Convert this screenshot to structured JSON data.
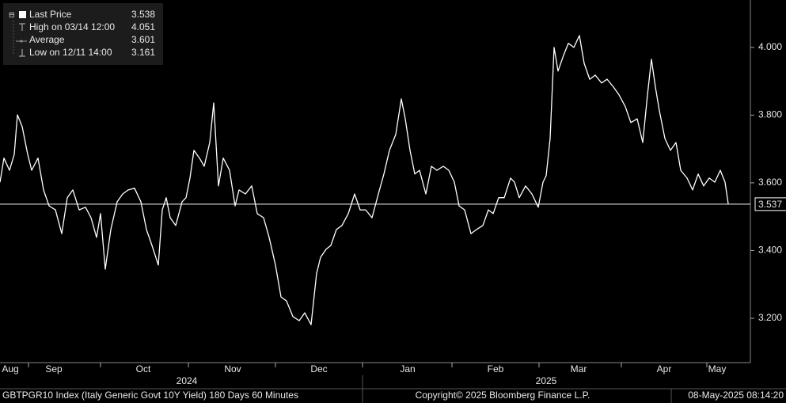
{
  "chart_data": {
    "type": "line",
    "legend": [
      {
        "label": "Last Price",
        "value": 3.538
      },
      {
        "label": "High on 03/14 12:00",
        "value": 4.051
      },
      {
        "label": "Average",
        "value": 3.601
      },
      {
        "label": "Low on 12/11 14:00",
        "value": 3.161
      }
    ],
    "last_price_marker": 3.537,
    "footer_left": "GBTPGR10 Index (Italy Generic Govt 10Y Yield) 180 Days 60 Minutes",
    "footer_center": "Copyright© 2025 Bloomberg Finance L.P.",
    "footer_right": "08-May-2025 08:14:20",
    "x": [
      0,
      1,
      2.4,
      3.6,
      4.4,
      5.6,
      7,
      8,
      9.6,
      11,
      12.4,
      14,
      15.6,
      17,
      18.4,
      20,
      21.6,
      23,
      24.4,
      25.4,
      26.6,
      28,
      29.6,
      31,
      32.4,
      34,
      35.6,
      37,
      38.4,
      40,
      41,
      42,
      43,
      44.4,
      46,
      47,
      48,
      49,
      50.4,
      51.6,
      53,
      54,
      55.2,
      56.4,
      58,
      59.4,
      60.4,
      62,
      63.6,
      65,
      66.6,
      68,
      69.6,
      71,
      72.4,
      74,
      75.6,
      77,
      78.6,
      80,
      81,
      82.4,
      83.6,
      85,
      86.4,
      88,
      89.6,
      91,
      92.4,
      94,
      95.6,
      97,
      98.4,
      100,
      101.4,
      102.4,
      103.6,
      104.8,
      106,
      107.6,
      109,
      110.4,
      112,
      113.4,
      114.8,
      116,
      117.4,
      119,
      120.4,
      122,
      123.4,
      124.6,
      126,
      127.4,
      129,
      130,
      131.2,
      132.8,
      134.4,
      136,
      137.2,
      138,
      139,
      140,
      141,
      142.4,
      143.6,
      145,
      146.4,
      147.6,
      149,
      150.4,
      152,
      153.4,
      155,
      156.4,
      158,
      159.4,
      161,
      162.4,
      163.6,
      164.6,
      165.6,
      166.6,
      168,
      169.4,
      170.8,
      172,
      173.6,
      175,
      176.4,
      177.8,
      179.2,
      180.6,
      182,
      183.2,
      184
    ],
    "series": [
      {
        "name": "Last Price",
        "color": "#ffffff",
        "values": [
          3.602,
          3.673,
          3.637,
          3.684,
          3.801,
          3.766,
          3.684,
          3.637,
          3.673,
          3.579,
          3.532,
          3.52,
          3.45,
          3.556,
          3.579,
          3.52,
          3.528,
          3.497,
          3.439,
          3.509,
          3.345,
          3.462,
          3.544,
          3.567,
          3.579,
          3.584,
          3.544,
          3.462,
          3.415,
          3.357,
          3.52,
          3.556,
          3.497,
          3.474,
          3.544,
          3.556,
          3.614,
          3.696,
          3.673,
          3.649,
          3.719,
          3.836,
          3.591,
          3.673,
          3.637,
          3.532,
          3.579,
          3.567,
          3.591,
          3.509,
          3.497,
          3.439,
          3.357,
          3.263,
          3.251,
          3.205,
          3.193,
          3.216,
          3.181,
          3.333,
          3.38,
          3.404,
          3.415,
          3.462,
          3.474,
          3.509,
          3.567,
          3.52,
          3.52,
          3.497,
          3.567,
          3.626,
          3.696,
          3.743,
          3.848,
          3.789,
          3.696,
          3.626,
          3.637,
          3.567,
          3.649,
          3.637,
          3.649,
          3.637,
          3.602,
          3.532,
          3.52,
          3.45,
          3.462,
          3.474,
          3.52,
          3.509,
          3.556,
          3.556,
          3.614,
          3.602,
          3.556,
          3.591,
          3.567,
          3.528,
          3.602,
          3.621,
          3.731,
          4.0,
          3.93,
          3.977,
          4.012,
          4.0,
          4.035,
          3.953,
          3.906,
          3.918,
          3.895,
          3.906,
          3.883,
          3.86,
          3.825,
          3.778,
          3.789,
          3.719,
          3.86,
          3.965,
          3.883,
          3.813,
          3.731,
          3.696,
          3.719,
          3.637,
          3.614,
          3.579,
          3.626,
          3.591,
          3.614,
          3.602,
          3.637,
          3.602,
          3.538
        ]
      }
    ],
    "xlim": [
      0,
      189.6
    ],
    "ylim": [
      3.069,
      4.14
    ],
    "yticks": [
      {
        "value": 3.2,
        "label": "3.200"
      },
      {
        "value": 3.4,
        "label": "3.400"
      },
      {
        "value": 3.6,
        "label": "3.600"
      },
      {
        "value": 3.8,
        "label": "3.800"
      },
      {
        "value": 4.0,
        "label": "4.000"
      }
    ],
    "xticks": [
      {
        "value": 2.6,
        "label": "Aug"
      },
      {
        "value": 13.6,
        "label": "Sep"
      },
      {
        "value": 36.2,
        "label": "Oct"
      },
      {
        "value": 58.8,
        "label": "Nov"
      },
      {
        "value": 80.6,
        "label": "Dec"
      },
      {
        "value": 103,
        "label": "Jan"
      },
      {
        "value": 125.2,
        "label": "Feb"
      },
      {
        "value": 146.2,
        "label": "Mar"
      },
      {
        "value": 167.8,
        "label": "Apr"
      },
      {
        "value": 181.2,
        "label": "May"
      }
    ],
    "month_boundaries": [
      7.2,
      25.4,
      47.6,
      69.6,
      91.6,
      114.2,
      136.2,
      157,
      178.6
    ],
    "year_labels": [
      {
        "value": 47.2,
        "label": "2024"
      },
      {
        "value": 138,
        "label": "2025"
      }
    ]
  }
}
